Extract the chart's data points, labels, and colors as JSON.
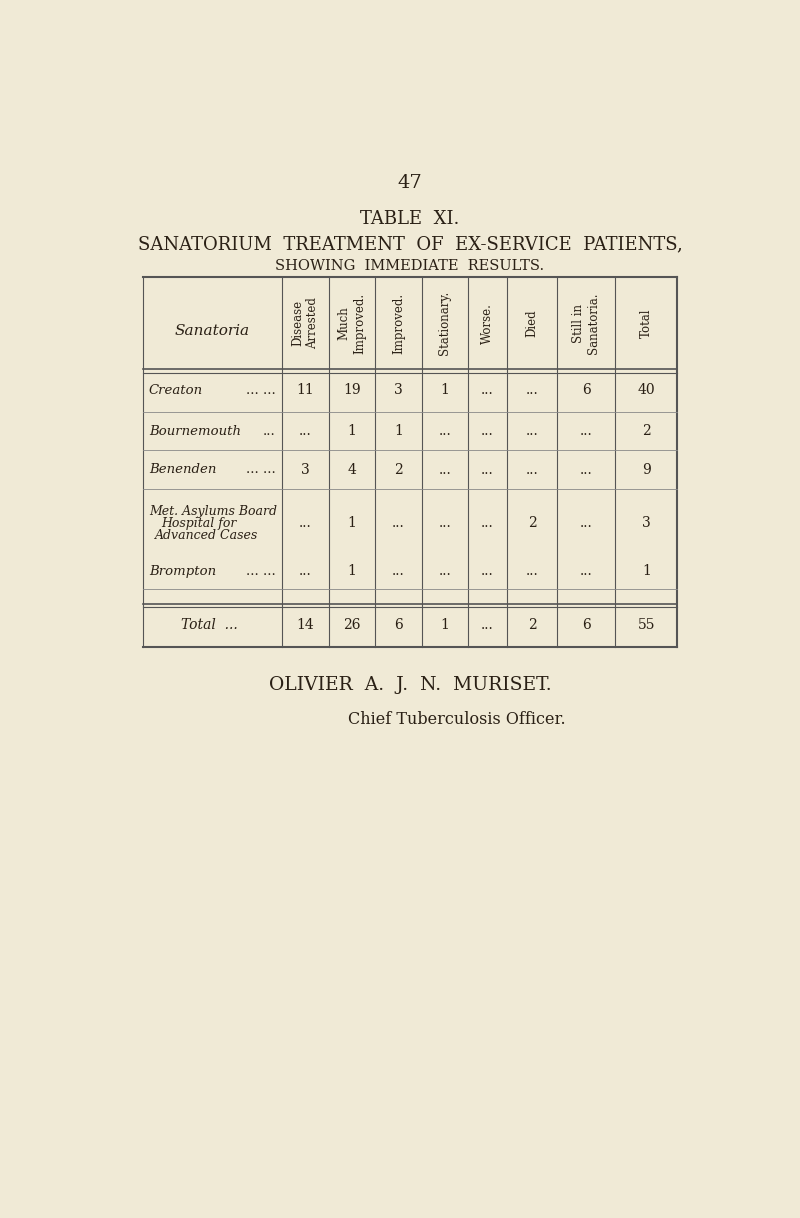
{
  "page_number": "47",
  "title_line1": "TABLE  XI.",
  "title_line2": "SANATORIUM  TREATMENT  OF  EX-SERVICE  PATIENTS,",
  "title_line3": "SHOWING  IMMEDIATE  RESULTS.",
  "col_headers": [
    "Disease\nArrested",
    "Much\nImproved.",
    "Improved.",
    "Stationary.",
    "Worse.",
    "Died",
    "Still in\nSanatoria.",
    "Total"
  ],
  "row_label_col": "Sanatoria",
  "rows": [
    {
      "label": [
        "Creaton",
        "... ..."
      ],
      "values": [
        "11",
        "19",
        "3",
        "1",
        "...",
        "...",
        "6",
        "40"
      ]
    },
    {
      "label": [
        "Bournemouth",
        "..."
      ],
      "values": [
        "...",
        "1",
        "1",
        "...",
        "...",
        "...",
        "...",
        "2"
      ]
    },
    {
      "label": [
        "Benenden",
        "... ..."
      ],
      "values": [
        "3",
        "4",
        "2",
        "...",
        "...",
        "...",
        "...",
        "9"
      ]
    },
    {
      "label": [
        "Met. Asylums Board",
        "Hospital for",
        "Advanced Cases"
      ],
      "values": [
        "...",
        "1",
        "...",
        "...",
        "...",
        "2",
        "...",
        "3"
      ]
    },
    {
      "label": [
        "Brompton",
        "... ..."
      ],
      "values": [
        "...",
        "1",
        "...",
        "...",
        "...",
        "...",
        "...",
        "1"
      ]
    }
  ],
  "total_row": {
    "label": "Total  ...",
    "values": [
      "14",
      "26",
      "6",
      "1",
      "...",
      "2",
      "6",
      "55"
    ]
  },
  "footer_line1": "OLIVIER  A.  J.  N.  MURISET.",
  "footer_line2": "Chief Tuberculosis Officer.",
  "bg_color": "#f0ead6",
  "text_color": "#2a2015",
  "table_border_color": "#555555",
  "inner_line_color": "#888888"
}
